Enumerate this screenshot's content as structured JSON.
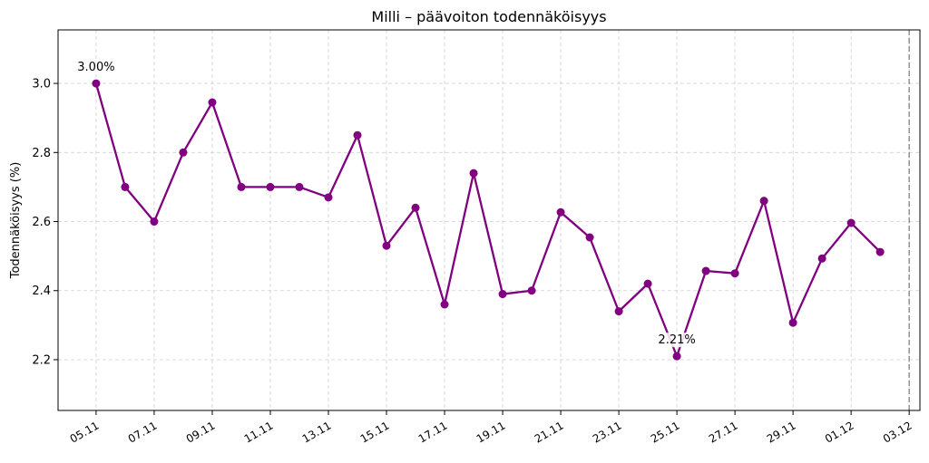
{
  "chart_data": {
    "type": "line",
    "title": "Milli – päävoiton todennäköisyys",
    "xlabel": "",
    "ylabel": "Todennäköisyys (%)",
    "x": [
      "05.11",
      "06.11",
      "07.11",
      "08.11",
      "09.11",
      "10.11",
      "11.11",
      "12.11",
      "13.11",
      "14.11",
      "15.11",
      "16.11",
      "17.11",
      "18.11",
      "19.11",
      "20.11",
      "21.11",
      "22.11",
      "23.11",
      "24.11",
      "25.11",
      "26.11",
      "27.11",
      "28.11",
      "29.11",
      "30.11",
      "01.12",
      "02.12"
    ],
    "series": [
      {
        "values": [
          3.0,
          2.7,
          2.6,
          2.8,
          2.945,
          2.7,
          2.7,
          2.7,
          2.67,
          2.85,
          2.53,
          2.64,
          2.36,
          2.74,
          2.39,
          2.4,
          2.627,
          2.554,
          2.34,
          2.42,
          2.21,
          2.457,
          2.45,
          2.66,
          2.307,
          2.493,
          2.596,
          2.512
        ],
        "color": "#800080"
      }
    ],
    "xticks": [
      "05.11",
      "07.11",
      "09.11",
      "11.11",
      "13.11",
      "15.11",
      "17.11",
      "19.11",
      "21.11",
      "23.11",
      "25.11",
      "27.11",
      "29.11",
      "01.12",
      "03.12"
    ],
    "yticks": [
      "2.2",
      "2.4",
      "2.6",
      "2.8",
      "3.0"
    ],
    "ylim": [
      2.053,
      3.155
    ],
    "xlim_days_from_first": [
      -1.31,
      28.37
    ],
    "grid": true,
    "annotations": [
      {
        "x": "05.11",
        "value": 3.0,
        "text": "3.00%"
      },
      {
        "x": "25.11",
        "value": 2.21,
        "text": "2.21%"
      }
    ],
    "vertical_line": {
      "x": "03.12",
      "style": "dashed",
      "color": "#808080"
    }
  }
}
